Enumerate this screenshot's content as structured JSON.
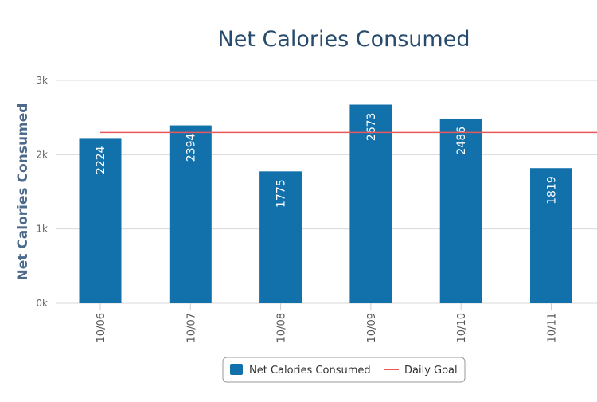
{
  "chart_data": {
    "type": "bar",
    "title": "Net Calories Consumed",
    "xlabel": "",
    "ylabel": "Net Calories Consumed",
    "categories": [
      "10/06",
      "10/07",
      "10/08",
      "10/09",
      "10/10",
      "10/11"
    ],
    "series": [
      {
        "name": "Net Calories Consumed",
        "type": "bar",
        "values": [
          2224,
          2394,
          1775,
          2673,
          2486,
          1819
        ],
        "color": "#1270ab"
      },
      {
        "name": "Daily Goal",
        "type": "line",
        "value": 2300,
        "color": "#e9595b"
      }
    ],
    "ylim": [
      0,
      3000
    ],
    "yticks": [
      0,
      1000,
      2000,
      3000
    ],
    "ytick_labels": [
      "0k",
      "1k",
      "2k",
      "3k"
    ],
    "grid": true,
    "legend": "bottom-center",
    "data_labels": true
  }
}
